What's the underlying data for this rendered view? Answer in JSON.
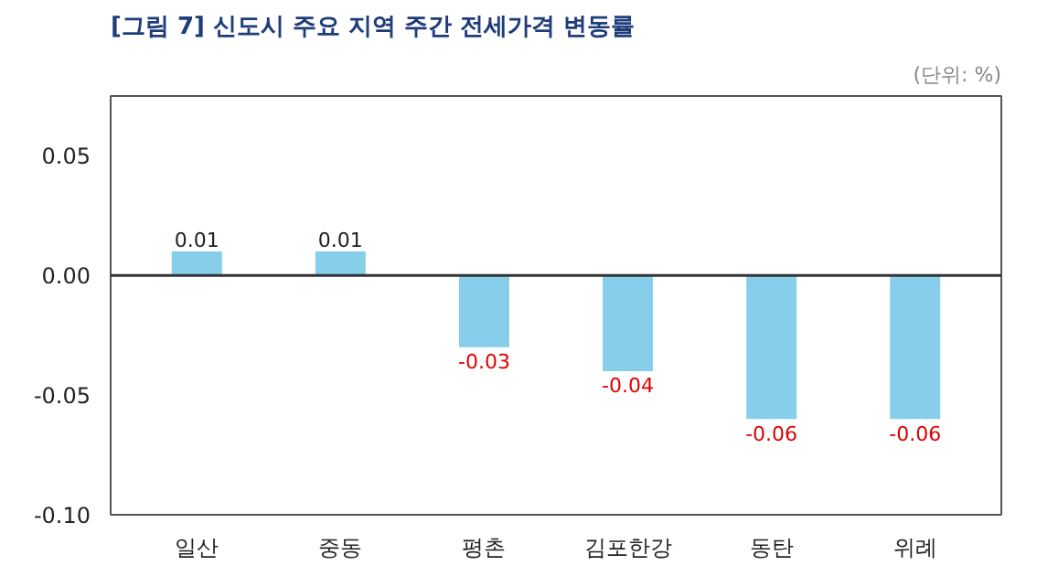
{
  "chart_data": {
    "type": "bar",
    "title": "[그림 7] 신도시 주요 지역 주간 전세가격 변동률",
    "annotations": [
      "(단위: %)"
    ],
    "categories": [
      "일산",
      "중동",
      "평촌",
      "김포한강",
      "동탄",
      "위례"
    ],
    "values": [
      0.01,
      0.01,
      -0.03,
      -0.04,
      -0.06,
      -0.06
    ],
    "color": "#87ceeb",
    "ylim": [
      -0.1,
      0.075
    ],
    "yticks": [
      {
        "value": -0.1,
        "label": "-0.10"
      },
      {
        "value": -0.05,
        "label": "-0.05"
      },
      {
        "value": 0,
        "label": "0.00"
      },
      {
        "value": 0.05,
        "label": "0.05"
      }
    ],
    "ref_lines": [
      {
        "axis": "y",
        "value": 0,
        "color": "#333333"
      }
    ],
    "data_labels": true,
    "grid": false
  }
}
